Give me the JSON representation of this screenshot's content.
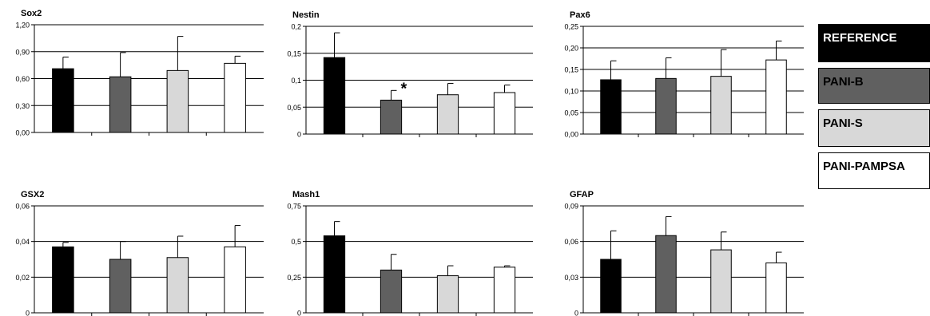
{
  "chart_data": [
    {
      "type": "bar",
      "title": "Sox2",
      "categories": [
        "REFERENCE",
        "PANI-B",
        "PANI-S",
        "PANI-PAMPSA"
      ],
      "values": [
        0.71,
        0.62,
        0.69,
        0.77
      ],
      "errors": [
        0.13,
        0.27,
        0.38,
        0.08
      ],
      "ylim": [
        0,
        1.2
      ],
      "yticks": [
        "0,00",
        "0,30",
        "0,60",
        "0,90",
        "1,20"
      ],
      "annotations": []
    },
    {
      "type": "bar",
      "title": "Nestin",
      "categories": [
        "REFERENCE",
        "PANI-B",
        "PANI-S",
        "PANI-PAMPSA"
      ],
      "values": [
        0.142,
        0.063,
        0.073,
        0.077
      ],
      "errors": [
        0.046,
        0.018,
        0.021,
        0.014
      ],
      "ylim": [
        0,
        0.2
      ],
      "yticks": [
        "0",
        "0,05",
        "0,1",
        "0,15",
        "0,2"
      ],
      "annotations": [
        {
          "bar": 1,
          "text": "*"
        }
      ]
    },
    {
      "type": "bar",
      "title": "Pax6",
      "categories": [
        "REFERENCE",
        "PANI-B",
        "PANI-S",
        "PANI-PAMPSA"
      ],
      "values": [
        0.126,
        0.129,
        0.134,
        0.172
      ],
      "errors": [
        0.044,
        0.048,
        0.062,
        0.044
      ],
      "ylim": [
        0,
        0.25
      ],
      "yticks": [
        "0,00",
        "0,05",
        "0,10",
        "0,15",
        "0,20",
        "0,25"
      ],
      "annotations": []
    },
    {
      "type": "bar",
      "title": "GSX2",
      "categories": [
        "REFERENCE",
        "PANI-B",
        "PANI-S",
        "PANI-PAMPSA"
      ],
      "values": [
        0.037,
        0.03,
        0.031,
        0.037
      ],
      "errors": [
        0.0025,
        0.01,
        0.012,
        0.012
      ],
      "ylim": [
        0,
        0.06
      ],
      "yticks": [
        "0",
        "0,02",
        "0,04",
        "0,06"
      ],
      "annotations": []
    },
    {
      "type": "bar",
      "title": "Mash1",
      "categories": [
        "REFERENCE",
        "PANI-B",
        "PANI-S",
        "PANI-PAMPSA"
      ],
      "values": [
        0.54,
        0.3,
        0.26,
        0.32
      ],
      "errors": [
        0.1,
        0.11,
        0.07,
        0.01
      ],
      "ylim": [
        0,
        0.75
      ],
      "yticks": [
        "0",
        "0,25",
        "0,5",
        "0,75"
      ],
      "annotations": []
    },
    {
      "type": "bar",
      "title": "GFAP",
      "categories": [
        "REFERENCE",
        "PANI-B",
        "PANI-S",
        "PANI-PAMPSA"
      ],
      "values": [
        0.045,
        0.065,
        0.053,
        0.042
      ],
      "errors": [
        0.024,
        0.016,
        0.015,
        0.009
      ],
      "ylim": [
        0,
        0.09
      ],
      "yticks": [
        "0",
        "0,03",
        "0,06",
        "0,09"
      ],
      "annotations": []
    }
  ],
  "legend": [
    {
      "label": "REFERENCE",
      "color": "#000000",
      "text_color": "#ffffff"
    },
    {
      "label": "PANI-B",
      "color": "#606060",
      "text_color": "#000000"
    },
    {
      "label": "PANI-S",
      "color": "#d8d8d8",
      "text_color": "#000000"
    },
    {
      "label": "PANI-PAMPSA",
      "color": "#ffffff",
      "text_color": "#000000"
    }
  ],
  "series_colors": [
    "#000000",
    "#606060",
    "#d8d8d8",
    "#ffffff"
  ]
}
